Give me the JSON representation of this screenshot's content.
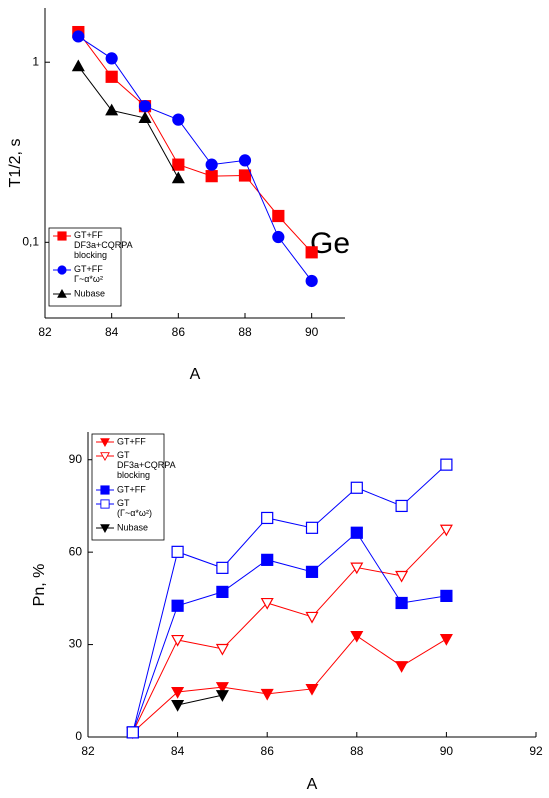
{
  "chart_data": [
    {
      "type": "line",
      "xlabel": "A",
      "ylabel": "T1/2, s",
      "annotation": "Ge",
      "x": [
        83,
        84,
        85,
        86,
        87,
        88,
        89,
        90
      ],
      "xlim": [
        82,
        91
      ],
      "xticks": [
        82,
        84,
        86,
        88,
        90
      ],
      "ylim": [
        0.038,
        2
      ],
      "ylog": true,
      "yticks": [
        {
          "value": 0.1,
          "label": "0,1"
        },
        1
      ],
      "legend": "lower left",
      "series": [
        {
          "name": "GT+FF\nDF3a+CQRPA\nblocking",
          "color": "#ff0000",
          "marker": "square",
          "filled": true,
          "values": [
            1.47,
            0.83,
            0.57,
            0.27,
            0.233,
            0.235,
            0.14,
            0.088
          ]
        },
        {
          "name": "GT+FF\nΓ~α*ω²",
          "color": "#0000ff",
          "marker": "circle",
          "filled": true,
          "values": [
            1.39,
            1.05,
            0.57,
            0.48,
            0.27,
            0.285,
            0.107,
            0.061
          ]
        },
        {
          "name": "Nubase",
          "color": "#000000",
          "marker": "triangle-up",
          "filled": true,
          "values": [
            0.95,
            0.54,
            0.49,
            0.227,
            null,
            null,
            null,
            null
          ]
        }
      ]
    },
    {
      "type": "line",
      "xlabel": "A",
      "ylabel": "Pn, %",
      "x": [
        83,
        84,
        85,
        86,
        87,
        88,
        89,
        90
      ],
      "xlim": [
        82,
        92
      ],
      "xticks": [
        82,
        84,
        86,
        88,
        90,
        92
      ],
      "ylim": [
        0,
        99
      ],
      "ylog": false,
      "yticks": [
        0,
        30,
        60,
        90
      ],
      "legend": "upper left",
      "series": [
        {
          "name": "GT+FF",
          "color": "#ff0000",
          "marker": "triangle-down",
          "filled": true,
          "values": [
            1.5,
            14.6,
            16.2,
            14,
            15.6,
            32.8,
            23,
            31.8
          ]
        },
        {
          "name": "GT\nDF3a+CQRPA\nblocking",
          "color": "#ff0000",
          "marker": "triangle-down",
          "filled": false,
          "values": [
            1.5,
            31.5,
            28.6,
            43.5,
            39,
            55,
            52.3,
            67.3
          ]
        },
        {
          "name": "GT+FF",
          "color": "#0000ff",
          "marker": "square",
          "filled": true,
          "values": [
            1.5,
            42.6,
            47.1,
            57.5,
            53.6,
            66.3,
            43.5,
            45.8
          ]
        },
        {
          "name": "GT\n(Γ~α*ω²)",
          "color": "#0000ff",
          "marker": "square",
          "filled": false,
          "values": [
            1.5,
            60.1,
            54.9,
            71.1,
            67.9,
            80.9,
            75,
            88.4
          ]
        },
        {
          "name": "Nubase",
          "color": "#000000",
          "marker": "triangle-down",
          "filled": true,
          "values": [
            null,
            10.4,
            13.6,
            null,
            null,
            null,
            null,
            null
          ]
        }
      ]
    }
  ]
}
